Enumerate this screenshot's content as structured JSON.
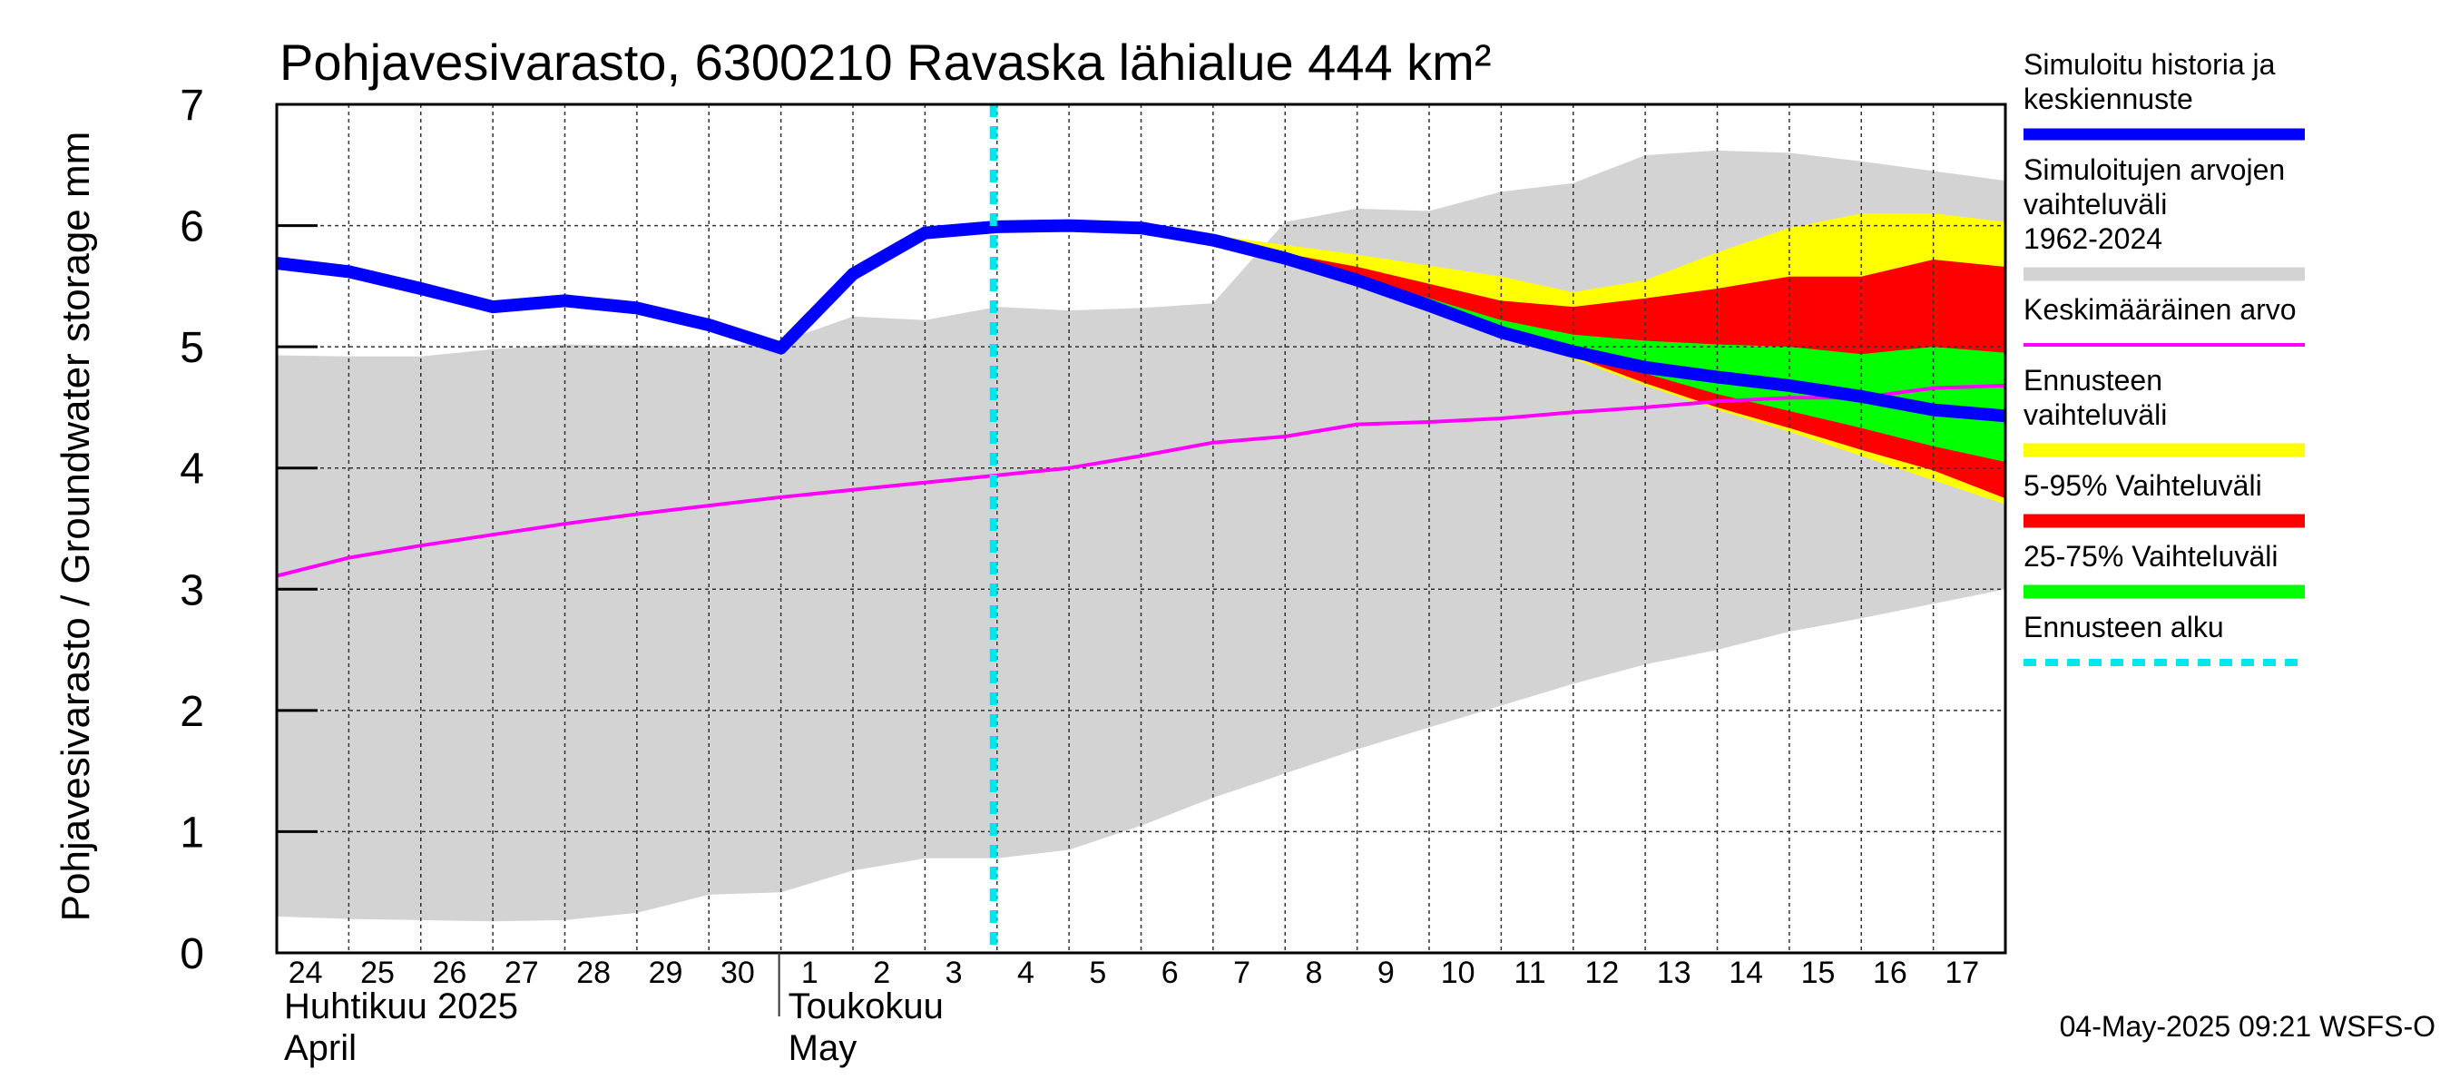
{
  "chart_data": {
    "type": "area",
    "title": "Pohjavesivarasto, 6300210 Ravaska lähialue 444 km²",
    "ylabel": "Pohjavesivarasto / Groundwater storage   mm",
    "ylim": [
      0,
      7
    ],
    "yticks": [
      "0",
      "1",
      "2",
      "3",
      "4",
      "5",
      "6",
      "7"
    ],
    "x_day_index_range": [
      0,
      24
    ],
    "x_ticks": [
      "24",
      "25",
      "26",
      "27",
      "28",
      "29",
      "30",
      "1",
      "2",
      "3",
      "4",
      "5",
      "6",
      "7",
      "8",
      "9",
      "10",
      "11",
      "12",
      "13",
      "14",
      "15",
      "16",
      "17"
    ],
    "month_labels": [
      {
        "fi": "Huhtikuu  2025",
        "en": "April",
        "start_index": 0
      },
      {
        "fi": "Toukokuu",
        "en": "May",
        "start_index": 7
      }
    ],
    "forecast_start_index": 10,
    "grid": true,
    "legend_position": "right",
    "series": [
      {
        "name": "Simuloitujen arvojen vaihteluväli 1962-2024",
        "kind": "band",
        "color": "#d3d3d3",
        "x": [
          0,
          1,
          2,
          3,
          4,
          5,
          6,
          7,
          8,
          9,
          10,
          11,
          12,
          13,
          14,
          15,
          16,
          17,
          18,
          19,
          20,
          21,
          22,
          23,
          24
        ],
        "upper": [
          4.93,
          4.92,
          4.92,
          4.98,
          5.02,
          5.01,
          5.0,
          5.04,
          5.25,
          5.22,
          5.33,
          5.3,
          5.32,
          5.36,
          6.03,
          6.14,
          6.12,
          6.28,
          6.35,
          6.58,
          6.62,
          6.6,
          6.53,
          6.45,
          6.37
        ],
        "lower": [
          0.3,
          0.28,
          0.27,
          0.26,
          0.27,
          0.33,
          0.48,
          0.5,
          0.68,
          0.78,
          0.78,
          0.85,
          1.05,
          1.28,
          1.48,
          1.68,
          1.86,
          2.04,
          2.22,
          2.38,
          2.5,
          2.65,
          2.76,
          2.88,
          3.0
        ]
      },
      {
        "name": "Ennusteen vaihteluväli",
        "kind": "band",
        "color": "#ffff00",
        "x": [
          12,
          13,
          14,
          15,
          16,
          17,
          18,
          19,
          20,
          21,
          22,
          23,
          24
        ],
        "upper": [
          5.98,
          5.92,
          5.84,
          5.76,
          5.67,
          5.58,
          5.45,
          5.55,
          5.78,
          5.98,
          6.1,
          6.1,
          6.03
        ],
        "lower": [
          5.98,
          5.88,
          5.73,
          5.55,
          5.34,
          5.12,
          4.9,
          4.68,
          4.48,
          4.3,
          4.1,
          3.9,
          3.7
        ]
      },
      {
        "name": "5-95% Vaihteluväli",
        "kind": "band",
        "color": "#ff0000",
        "x": [
          12,
          13,
          14,
          15,
          16,
          17,
          18,
          19,
          20,
          21,
          22,
          23,
          24
        ],
        "upper": [
          5.98,
          5.89,
          5.77,
          5.66,
          5.52,
          5.38,
          5.33,
          5.4,
          5.48,
          5.58,
          5.58,
          5.72,
          5.66
        ],
        "lower": [
          5.98,
          5.88,
          5.73,
          5.55,
          5.34,
          5.12,
          4.92,
          4.7,
          4.5,
          4.33,
          4.15,
          3.98,
          3.75
        ]
      },
      {
        "name": "25-75% Vaihteluväli",
        "kind": "band",
        "color": "#00ff00",
        "x": [
          12,
          13,
          14,
          15,
          16,
          17,
          18,
          19,
          20,
          21,
          22,
          23,
          24
        ],
        "upper": [
          5.98,
          5.88,
          5.74,
          5.58,
          5.4,
          5.22,
          5.1,
          5.05,
          5.02,
          5.0,
          4.94,
          5.0,
          4.95
        ],
        "lower": [
          5.98,
          5.88,
          5.73,
          5.55,
          5.36,
          5.15,
          4.96,
          4.78,
          4.61,
          4.47,
          4.33,
          4.18,
          4.05
        ]
      },
      {
        "name": "Keskimääräinen arvo",
        "kind": "line",
        "color": "#ff00ff",
        "x": [
          0,
          1,
          2,
          3,
          4,
          5,
          6,
          7,
          8,
          9,
          10,
          11,
          12,
          13,
          14,
          15,
          16,
          17,
          18,
          19,
          20,
          21,
          22,
          23,
          24
        ],
        "values": [
          3.11,
          3.26,
          3.36,
          3.45,
          3.54,
          3.62,
          3.69,
          3.76,
          3.82,
          3.88,
          3.94,
          4.0,
          4.1,
          4.21,
          4.26,
          4.36,
          4.38,
          4.41,
          4.46,
          4.5,
          4.55,
          4.58,
          4.58,
          4.66,
          4.68
        ]
      },
      {
        "name": "Simuloitu historia ja keskiennuste",
        "kind": "line",
        "color": "#0000ff",
        "x": [
          0,
          1,
          2,
          3,
          4,
          5,
          6,
          7,
          8,
          9,
          10,
          11,
          12,
          13,
          14,
          15,
          16,
          17,
          18,
          19,
          20,
          21,
          22,
          23,
          24
        ],
        "values": [
          5.69,
          5.62,
          5.48,
          5.33,
          5.38,
          5.32,
          5.18,
          4.99,
          5.6,
          5.94,
          5.99,
          6.0,
          5.98,
          5.88,
          5.73,
          5.55,
          5.34,
          5.12,
          4.96,
          4.83,
          4.75,
          4.68,
          4.59,
          4.48,
          4.43
        ]
      }
    ],
    "legend": [
      {
        "label": "Simuloitu historia ja keskiennuste",
        "color": "#0000ff",
        "style": "thick"
      },
      {
        "label": "Simuloitujen arvojen vaihteluväli 1962-2024",
        "color": "#d3d3d3",
        "style": "band"
      },
      {
        "label": "Keskimääräinen arvo",
        "color": "#ff00ff",
        "style": "thin"
      },
      {
        "label": "Ennusteen vaihteluväli",
        "color": "#ffff00",
        "style": "band"
      },
      {
        "label": "5-95% Vaihteluväli",
        "color": "#ff0000",
        "style": "band"
      },
      {
        "label": "25-75% Vaihteluväli",
        "color": "#00ff00",
        "style": "band"
      },
      {
        "label": "Ennusteen alku",
        "color": "#00e5ee",
        "style": "dashed"
      }
    ],
    "footer": "04-May-2025 09:21 WSFS-O"
  }
}
